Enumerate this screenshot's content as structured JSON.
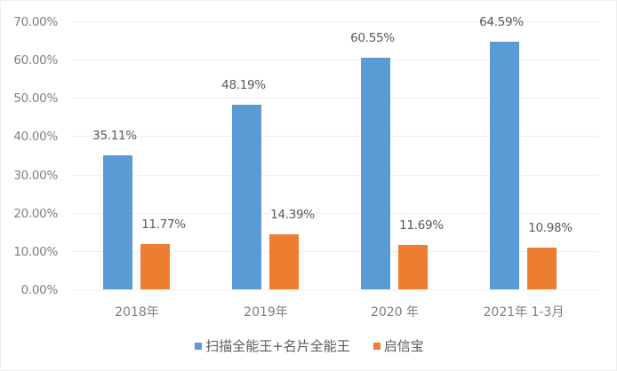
{
  "chart_data": {
    "type": "bar",
    "title": "",
    "xlabel": "",
    "ylabel": "",
    "ylim": [
      0,
      70
    ],
    "y_ticks": [
      "0.00%",
      "10.00%",
      "20.00%",
      "30.00%",
      "40.00%",
      "50.00%",
      "60.00%",
      "70.00%"
    ],
    "grid": true,
    "legend_position": "bottom",
    "categories": [
      "2018年",
      "2019年",
      "2020 年",
      "2021年 1-3月"
    ],
    "series": [
      {
        "name": "扫描全能王+名片全能王",
        "color": "#5b9bd5",
        "values": [
          35.11,
          48.19,
          60.55,
          64.59
        ],
        "labels": [
          "35.11%",
          "48.19%",
          "60.55%",
          "64.59%"
        ]
      },
      {
        "name": "启信宝",
        "color": "#ed7d31",
        "values": [
          11.77,
          14.39,
          11.69,
          10.98
        ],
        "labels": [
          "11.77%",
          "14.39%",
          "11.69%",
          "10.98%"
        ]
      }
    ]
  }
}
